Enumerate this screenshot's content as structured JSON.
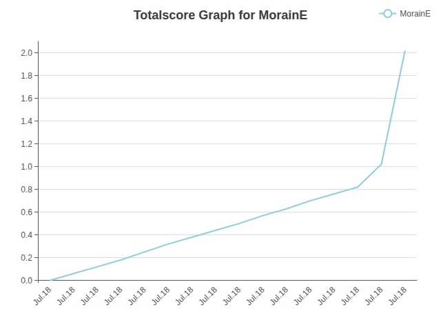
{
  "chart_data": {
    "type": "line",
    "title": "Totalscore Graph for MorainE",
    "categories": [
      "Jul.18",
      "Jul.18",
      "Jul.18",
      "Jul.18",
      "Jul.18",
      "Jul.18",
      "Jul.18",
      "Jul.18",
      "Jul.18",
      "Jul.18",
      "Jul.18",
      "Jul.18",
      "Jul.18",
      "Jul.18",
      "Jul.18",
      "Jul.18"
    ],
    "series": [
      {
        "name": "MorainE",
        "color": "#87ceeb",
        "values": [
          0.0,
          0.06,
          0.12,
          0.18,
          0.25,
          0.32,
          0.38,
          0.44,
          0.5,
          0.57,
          0.63,
          0.7,
          0.76,
          0.82,
          1.02,
          2.02
        ]
      }
    ],
    "ylim": [
      -0.02,
      2.1
    ],
    "yticks": [
      {
        "value": 0.0,
        "label": "0.0"
      },
      0.2,
      0.4,
      0.6,
      0.8,
      {
        "value": 1.0,
        "label": "1.0"
      },
      1.2,
      1.4,
      1.6,
      1.8,
      {
        "value": 2.0,
        "label": "2.0"
      }
    ],
    "grid": true,
    "legend": "upper right"
  }
}
